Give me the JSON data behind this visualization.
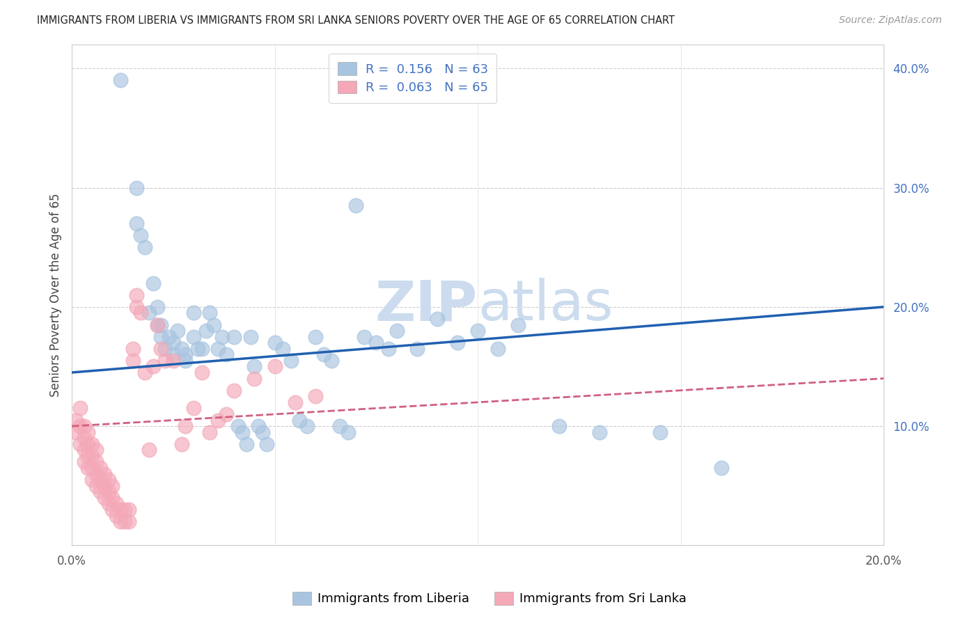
{
  "title": "IMMIGRANTS FROM LIBERIA VS IMMIGRANTS FROM SRI LANKA SENIORS POVERTY OVER THE AGE OF 65 CORRELATION CHART",
  "source": "Source: ZipAtlas.com",
  "ylabel": "Seniors Poverty Over the Age of 65",
  "xlim": [
    0.0,
    0.2
  ],
  "ylim": [
    0.0,
    0.42
  ],
  "x_ticks": [
    0.0,
    0.05,
    0.1,
    0.15,
    0.2
  ],
  "x_tick_labels": [
    "0.0%",
    "",
    "",
    "",
    "20.0%"
  ],
  "y_ticks": [
    0.0,
    0.1,
    0.2,
    0.3,
    0.4
  ],
  "y_tick_labels_right": [
    "",
    "10.0%",
    "20.0%",
    "30.0%",
    "40.0%"
  ],
  "liberia_R": 0.156,
  "liberia_N": 63,
  "srilanka_R": 0.063,
  "srilanka_N": 65,
  "liberia_color": "#a8c4e0",
  "srilanka_color": "#f4a8b8",
  "liberia_line_color": "#2060b0",
  "srilanka_line_color": "#d06080",
  "watermark_color": "#ccdcee",
  "liberia_x": [
    0.012,
    0.016,
    0.016,
    0.017,
    0.018,
    0.019,
    0.02,
    0.021,
    0.021,
    0.022,
    0.022,
    0.023,
    0.024,
    0.025,
    0.025,
    0.026,
    0.027,
    0.028,
    0.028,
    0.03,
    0.03,
    0.031,
    0.032,
    0.033,
    0.034,
    0.035,
    0.036,
    0.037,
    0.038,
    0.04,
    0.041,
    0.042,
    0.043,
    0.044,
    0.045,
    0.046,
    0.047,
    0.048,
    0.05,
    0.052,
    0.054,
    0.056,
    0.058,
    0.06,
    0.062,
    0.064,
    0.066,
    0.068,
    0.07,
    0.072,
    0.075,
    0.078,
    0.08,
    0.085,
    0.09,
    0.095,
    0.1,
    0.105,
    0.11,
    0.12,
    0.13,
    0.145,
    0.16
  ],
  "liberia_y": [
    0.39,
    0.3,
    0.27,
    0.26,
    0.25,
    0.195,
    0.22,
    0.2,
    0.185,
    0.185,
    0.175,
    0.165,
    0.175,
    0.17,
    0.16,
    0.18,
    0.165,
    0.16,
    0.155,
    0.195,
    0.175,
    0.165,
    0.165,
    0.18,
    0.195,
    0.185,
    0.165,
    0.175,
    0.16,
    0.175,
    0.1,
    0.095,
    0.085,
    0.175,
    0.15,
    0.1,
    0.095,
    0.085,
    0.17,
    0.165,
    0.155,
    0.105,
    0.1,
    0.175,
    0.16,
    0.155,
    0.1,
    0.095,
    0.285,
    0.175,
    0.17,
    0.165,
    0.18,
    0.165,
    0.19,
    0.17,
    0.18,
    0.165,
    0.185,
    0.1,
    0.095,
    0.095,
    0.065
  ],
  "srilanka_x": [
    0.001,
    0.001,
    0.002,
    0.002,
    0.002,
    0.003,
    0.003,
    0.003,
    0.003,
    0.004,
    0.004,
    0.004,
    0.004,
    0.005,
    0.005,
    0.005,
    0.005,
    0.006,
    0.006,
    0.006,
    0.006,
    0.007,
    0.007,
    0.007,
    0.008,
    0.008,
    0.008,
    0.009,
    0.009,
    0.009,
    0.01,
    0.01,
    0.01,
    0.011,
    0.011,
    0.012,
    0.012,
    0.013,
    0.013,
    0.014,
    0.014,
    0.015,
    0.015,
    0.016,
    0.016,
    0.017,
    0.018,
    0.019,
    0.02,
    0.021,
    0.022,
    0.023,
    0.025,
    0.027,
    0.028,
    0.03,
    0.032,
    0.034,
    0.036,
    0.038,
    0.04,
    0.045,
    0.05,
    0.055,
    0.06
  ],
  "srilanka_y": [
    0.095,
    0.105,
    0.085,
    0.1,
    0.115,
    0.07,
    0.08,
    0.09,
    0.1,
    0.065,
    0.075,
    0.085,
    0.095,
    0.055,
    0.065,
    0.075,
    0.085,
    0.05,
    0.06,
    0.07,
    0.08,
    0.045,
    0.055,
    0.065,
    0.04,
    0.05,
    0.06,
    0.035,
    0.045,
    0.055,
    0.03,
    0.04,
    0.05,
    0.025,
    0.035,
    0.02,
    0.03,
    0.02,
    0.03,
    0.02,
    0.03,
    0.165,
    0.155,
    0.2,
    0.21,
    0.195,
    0.145,
    0.08,
    0.15,
    0.185,
    0.165,
    0.155,
    0.155,
    0.085,
    0.1,
    0.115,
    0.145,
    0.095,
    0.105,
    0.11,
    0.13,
    0.14,
    0.15,
    0.12,
    0.125
  ]
}
